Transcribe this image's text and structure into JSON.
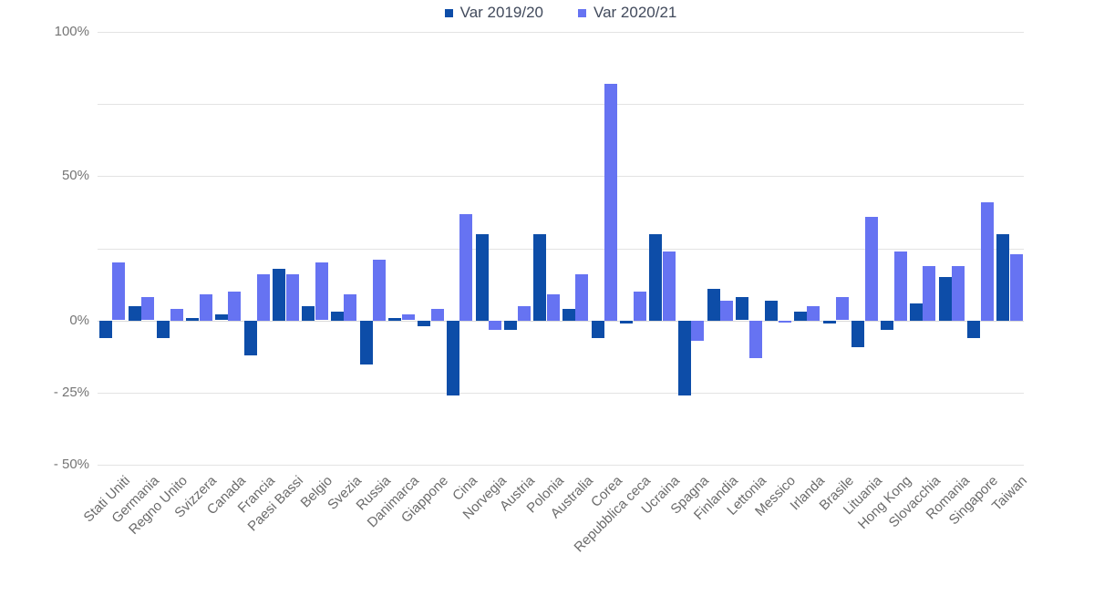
{
  "legend": {
    "items": [
      {
        "label": "Var 2019/20",
        "color": "#0d4da8"
      },
      {
        "label": "Var 2020/21",
        "color": "#6673f2"
      }
    ]
  },
  "chart_data": {
    "type": "bar",
    "title": "",
    "xlabel": "",
    "ylabel": "",
    "grid": true,
    "legend_position": "top",
    "ylim": [
      -50,
      100
    ],
    "y_ticks": [
      {
        "value": 100,
        "label": "100%"
      },
      {
        "value": 75,
        "label": ""
      },
      {
        "value": 50,
        "label": "50%"
      },
      {
        "value": 25,
        "label": ""
      },
      {
        "value": 0,
        "label": "0%"
      },
      {
        "value": -25,
        "label": "- 25%"
      },
      {
        "value": -50,
        "label": "- 50%"
      }
    ],
    "categories": [
      "Stati Uniti",
      "Germania",
      "Regno Unito",
      "Svizzera",
      "Canada",
      "Francia",
      "Paesi Bassi",
      "Belgio",
      "Svezia",
      "Russia",
      "Danimarca",
      "Giappone",
      "Cina",
      "Norvegia",
      "Austria",
      "Polonia",
      "Australia",
      "Corea",
      "Repubblica ceca",
      "Ucraina",
      "Spagna",
      "Finlandia",
      "Lettonia",
      "Messico",
      "Irlanda",
      "Brasile",
      "Lituania",
      "Hong Kong",
      "Slovacchia",
      "Romania",
      "Singapore",
      "Taiwan"
    ],
    "series": [
      {
        "name": "Var 2019/20",
        "color": "#0d4da8",
        "values": [
          -6,
          5,
          -6,
          1,
          2,
          -12,
          18,
          5,
          3,
          -15,
          1,
          -2,
          -26,
          30,
          -3,
          30,
          4,
          -6,
          -1,
          30,
          -26,
          11,
          8,
          7,
          3,
          -1,
          -9,
          -3,
          6,
          15,
          -6,
          30
        ]
      },
      {
        "name": "Var 2020/21",
        "color": "#6673f2",
        "values": [
          20,
          8,
          4,
          9,
          10,
          16,
          16,
          20,
          9,
          21,
          2,
          4,
          37,
          -3,
          5,
          9,
          16,
          82,
          10,
          24,
          -7,
          7,
          -13,
          -0.5,
          5,
          8,
          36,
          24,
          19,
          19,
          41,
          23
        ]
      }
    ],
    "colors": {
      "background": "#ffffff",
      "gridline": "#e3e3e3",
      "axis_text": "#6b6b6b",
      "y_axis_text": "#757575",
      "legend_text": "#414a5c"
    }
  }
}
